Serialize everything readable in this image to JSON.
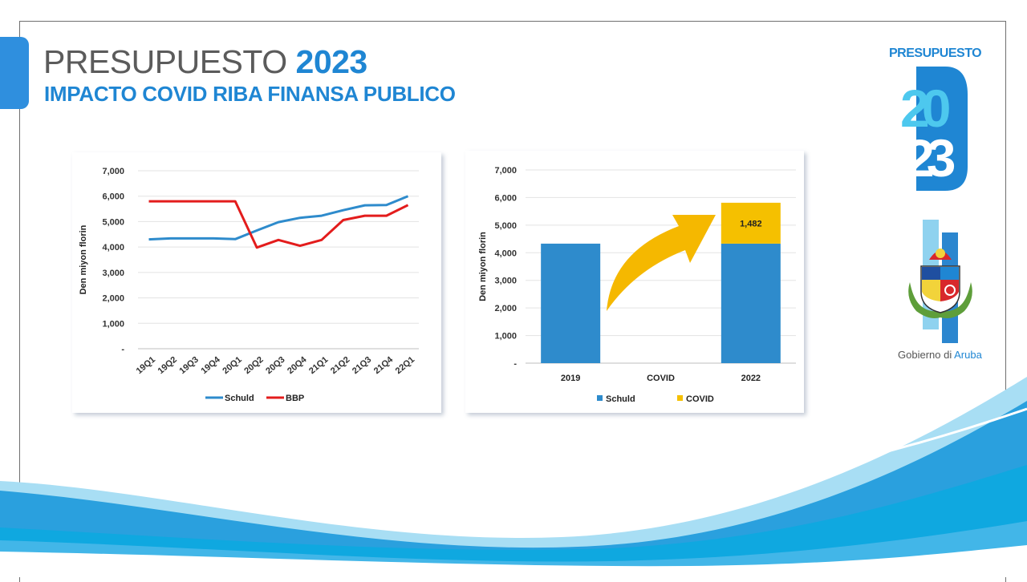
{
  "header": {
    "title_word": "PRESUPUESTO",
    "title_year": "2023",
    "subtitle": "IMPACTO COVID RIBA FINANSA PUBLICO"
  },
  "brand": {
    "label": "PRESUPUESTO",
    "mark_top": "20",
    "mark_bottom": "23",
    "gov_prefix": "Gobierno di ",
    "gov_name": "Aruba"
  },
  "colors": {
    "accent": "#1f86d3",
    "schuld": "#2e8bcc",
    "bbp": "#e31c1c",
    "covid": "#f5c000",
    "arrow": "#f5b800"
  },
  "chart_data": [
    {
      "type": "line",
      "title": "",
      "ylabel": "Den miyon florin",
      "xlabel": "",
      "ylim": [
        0,
        7000
      ],
      "yticks": [
        0,
        1000,
        2000,
        3000,
        4000,
        5000,
        6000,
        7000
      ],
      "ytick_labels": [
        "-",
        "1,000",
        "2,000",
        "3,000",
        "4,000",
        "5,000",
        "6,000",
        "7,000"
      ],
      "categories": [
        "19Q1",
        "19Q2",
        "19Q3",
        "19Q4",
        "20Q1",
        "20Q2",
        "20Q3",
        "20Q4",
        "21Q1",
        "21Q2",
        "21Q3",
        "21Q4",
        "22Q1"
      ],
      "series": [
        {
          "name": "Schuld",
          "color": "#2e8bcc",
          "values": [
            4300,
            4340,
            4340,
            4340,
            4310,
            4650,
            4980,
            5150,
            5230,
            5450,
            5640,
            5650,
            6000
          ]
        },
        {
          "name": "BBP",
          "color": "#e31c1c",
          "values": [
            5800,
            5800,
            5800,
            5800,
            5800,
            3980,
            4280,
            4050,
            4280,
            5060,
            5230,
            5230,
            5650
          ]
        }
      ],
      "legend": "bottom",
      "grid": true
    },
    {
      "type": "bar",
      "stacked": true,
      "title": "",
      "ylabel": "Den miyon florin",
      "xlabel": "",
      "ylim": [
        0,
        7000
      ],
      "yticks": [
        0,
        1000,
        2000,
        3000,
        4000,
        5000,
        6000,
        7000
      ],
      "ytick_labels": [
        "-",
        "1,000",
        "2,000",
        "3,000",
        "4,000",
        "5,000",
        "6,000",
        "7,000"
      ],
      "categories": [
        "2019",
        "COVID",
        "2022"
      ],
      "series": [
        {
          "name": "Schuld",
          "color": "#2e8bcc",
          "values": [
            4330,
            0,
            4330
          ]
        },
        {
          "name": "COVID",
          "color": "#f5c000",
          "values": [
            0,
            0,
            1482
          ]
        }
      ],
      "data_labels": [
        {
          "category": "2022",
          "series": "COVID",
          "text": "1,482"
        }
      ],
      "legend": "bottom",
      "grid": true
    }
  ]
}
